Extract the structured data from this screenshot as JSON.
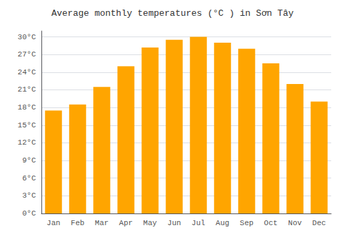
{
  "chart_data": {
    "type": "bar",
    "title": "Average monthly temperatures (°C ) in Sơn Tây",
    "categories": [
      "Jan",
      "Feb",
      "Mar",
      "Apr",
      "May",
      "Jun",
      "Jul",
      "Aug",
      "Sep",
      "Oct",
      "Nov",
      "Dec"
    ],
    "values": [
      17.5,
      18.5,
      21.5,
      25.0,
      28.2,
      29.5,
      30.0,
      29.0,
      28.0,
      25.5,
      22.0,
      19.0
    ],
    "color": "#FFA500",
    "ylim": [
      0,
      31
    ],
    "yticks": [
      {
        "value": 0,
        "label": "0°C"
      },
      {
        "value": 3,
        "label": "3°C"
      },
      {
        "value": 6,
        "label": "6°C"
      },
      {
        "value": 9,
        "label": "9°C"
      },
      {
        "value": 12,
        "label": "12°C"
      },
      {
        "value": 15,
        "label": "15°C"
      },
      {
        "value": 18,
        "label": "18°C"
      },
      {
        "value": 21,
        "label": "21°C"
      },
      {
        "value": 24,
        "label": "24°C"
      },
      {
        "value": 27,
        "label": "27°C"
      },
      {
        "value": 30,
        "label": "30°C"
      }
    ],
    "grid": true
  }
}
